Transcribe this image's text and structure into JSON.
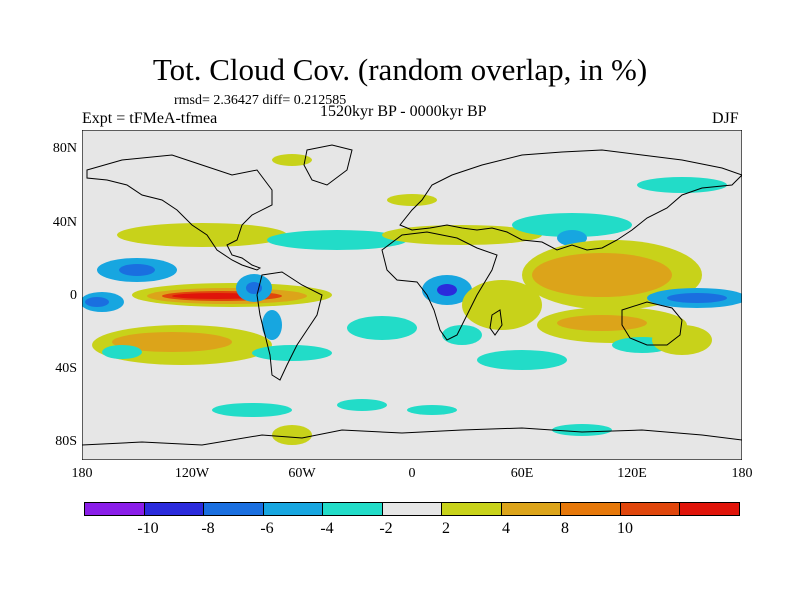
{
  "title": "Tot. Cloud Cov. (random overlap, in %)",
  "stats": "rmsd= 2.36427 diff= 0.212585",
  "expt": "Expt = tFMeA-tfmea",
  "period": "1520kyr BP - 0000kyr BP",
  "season": "DJF",
  "lat_labels": [
    "80N",
    "40N",
    "0",
    "40S",
    "80S"
  ],
  "lon_labels": [
    "180",
    "120W",
    "60W",
    "0",
    "60E",
    "120E",
    "180"
  ],
  "colorbar": {
    "labels": [
      "-10",
      "-8",
      "-6",
      "-4",
      "-2",
      "2",
      "4",
      "8",
      "10"
    ],
    "colors": [
      "#8a1ee8",
      "#2b2bdc",
      "#1a6fe0",
      "#17a6e0",
      "#22dcc8",
      "#e6e6e6",
      "#c8d21a",
      "#dca41a",
      "#e6780a",
      "#e0460c",
      "#e0140a"
    ]
  },
  "colors": {
    "background": "#e6e6e6",
    "coast": "#000000"
  }
}
